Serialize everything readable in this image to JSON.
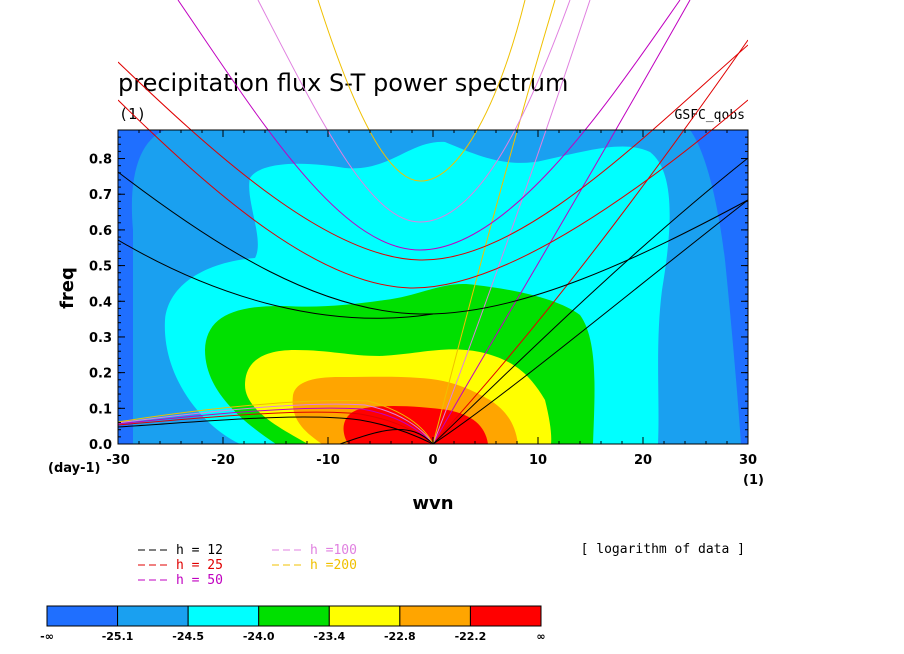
{
  "chart_data": {
    "type": "contour",
    "title": "precipitation flux S-T power spectrum",
    "subtitle_left": "(1)",
    "subtitle_right": "GSFC_qobs",
    "xlabel": "wvn",
    "ylabel": "freq",
    "x_unit": "(1)",
    "y_unit": "(day-1)",
    "xlim": [
      -30,
      30
    ],
    "ylim": [
      0.0,
      0.88
    ],
    "xticks": [
      "-30",
      "-20",
      "-10",
      "0",
      "10",
      "20",
      "30"
    ],
    "yticks": [
      "0.0",
      "0.1",
      "0.2",
      "0.3",
      "0.4",
      "0.5",
      "0.6",
      "0.7",
      "0.8"
    ],
    "note": "[ logarithm of data ]",
    "colorbar": {
      "labels": [
        "-∞",
        "-25.1",
        "-24.5",
        "-24.0",
        "-23.4",
        "-22.8",
        "-22.2",
        "∞"
      ],
      "colors": [
        "#1f6fff",
        "#1aa0f0",
        "#00ffff",
        "#00e000",
        "#ffff00",
        "#ffa500",
        "#ff0000"
      ]
    },
    "dispersion_curves": [
      {
        "label": "h = 12",
        "color": "#000000"
      },
      {
        "label": "h = 25",
        "color": "#e00000"
      },
      {
        "label": "h = 50",
        "color": "#c000c0"
      },
      {
        "label": "h =100",
        "color": "#e080e0"
      },
      {
        "label": "h =200",
        "color": "#f0c000"
      }
    ]
  }
}
